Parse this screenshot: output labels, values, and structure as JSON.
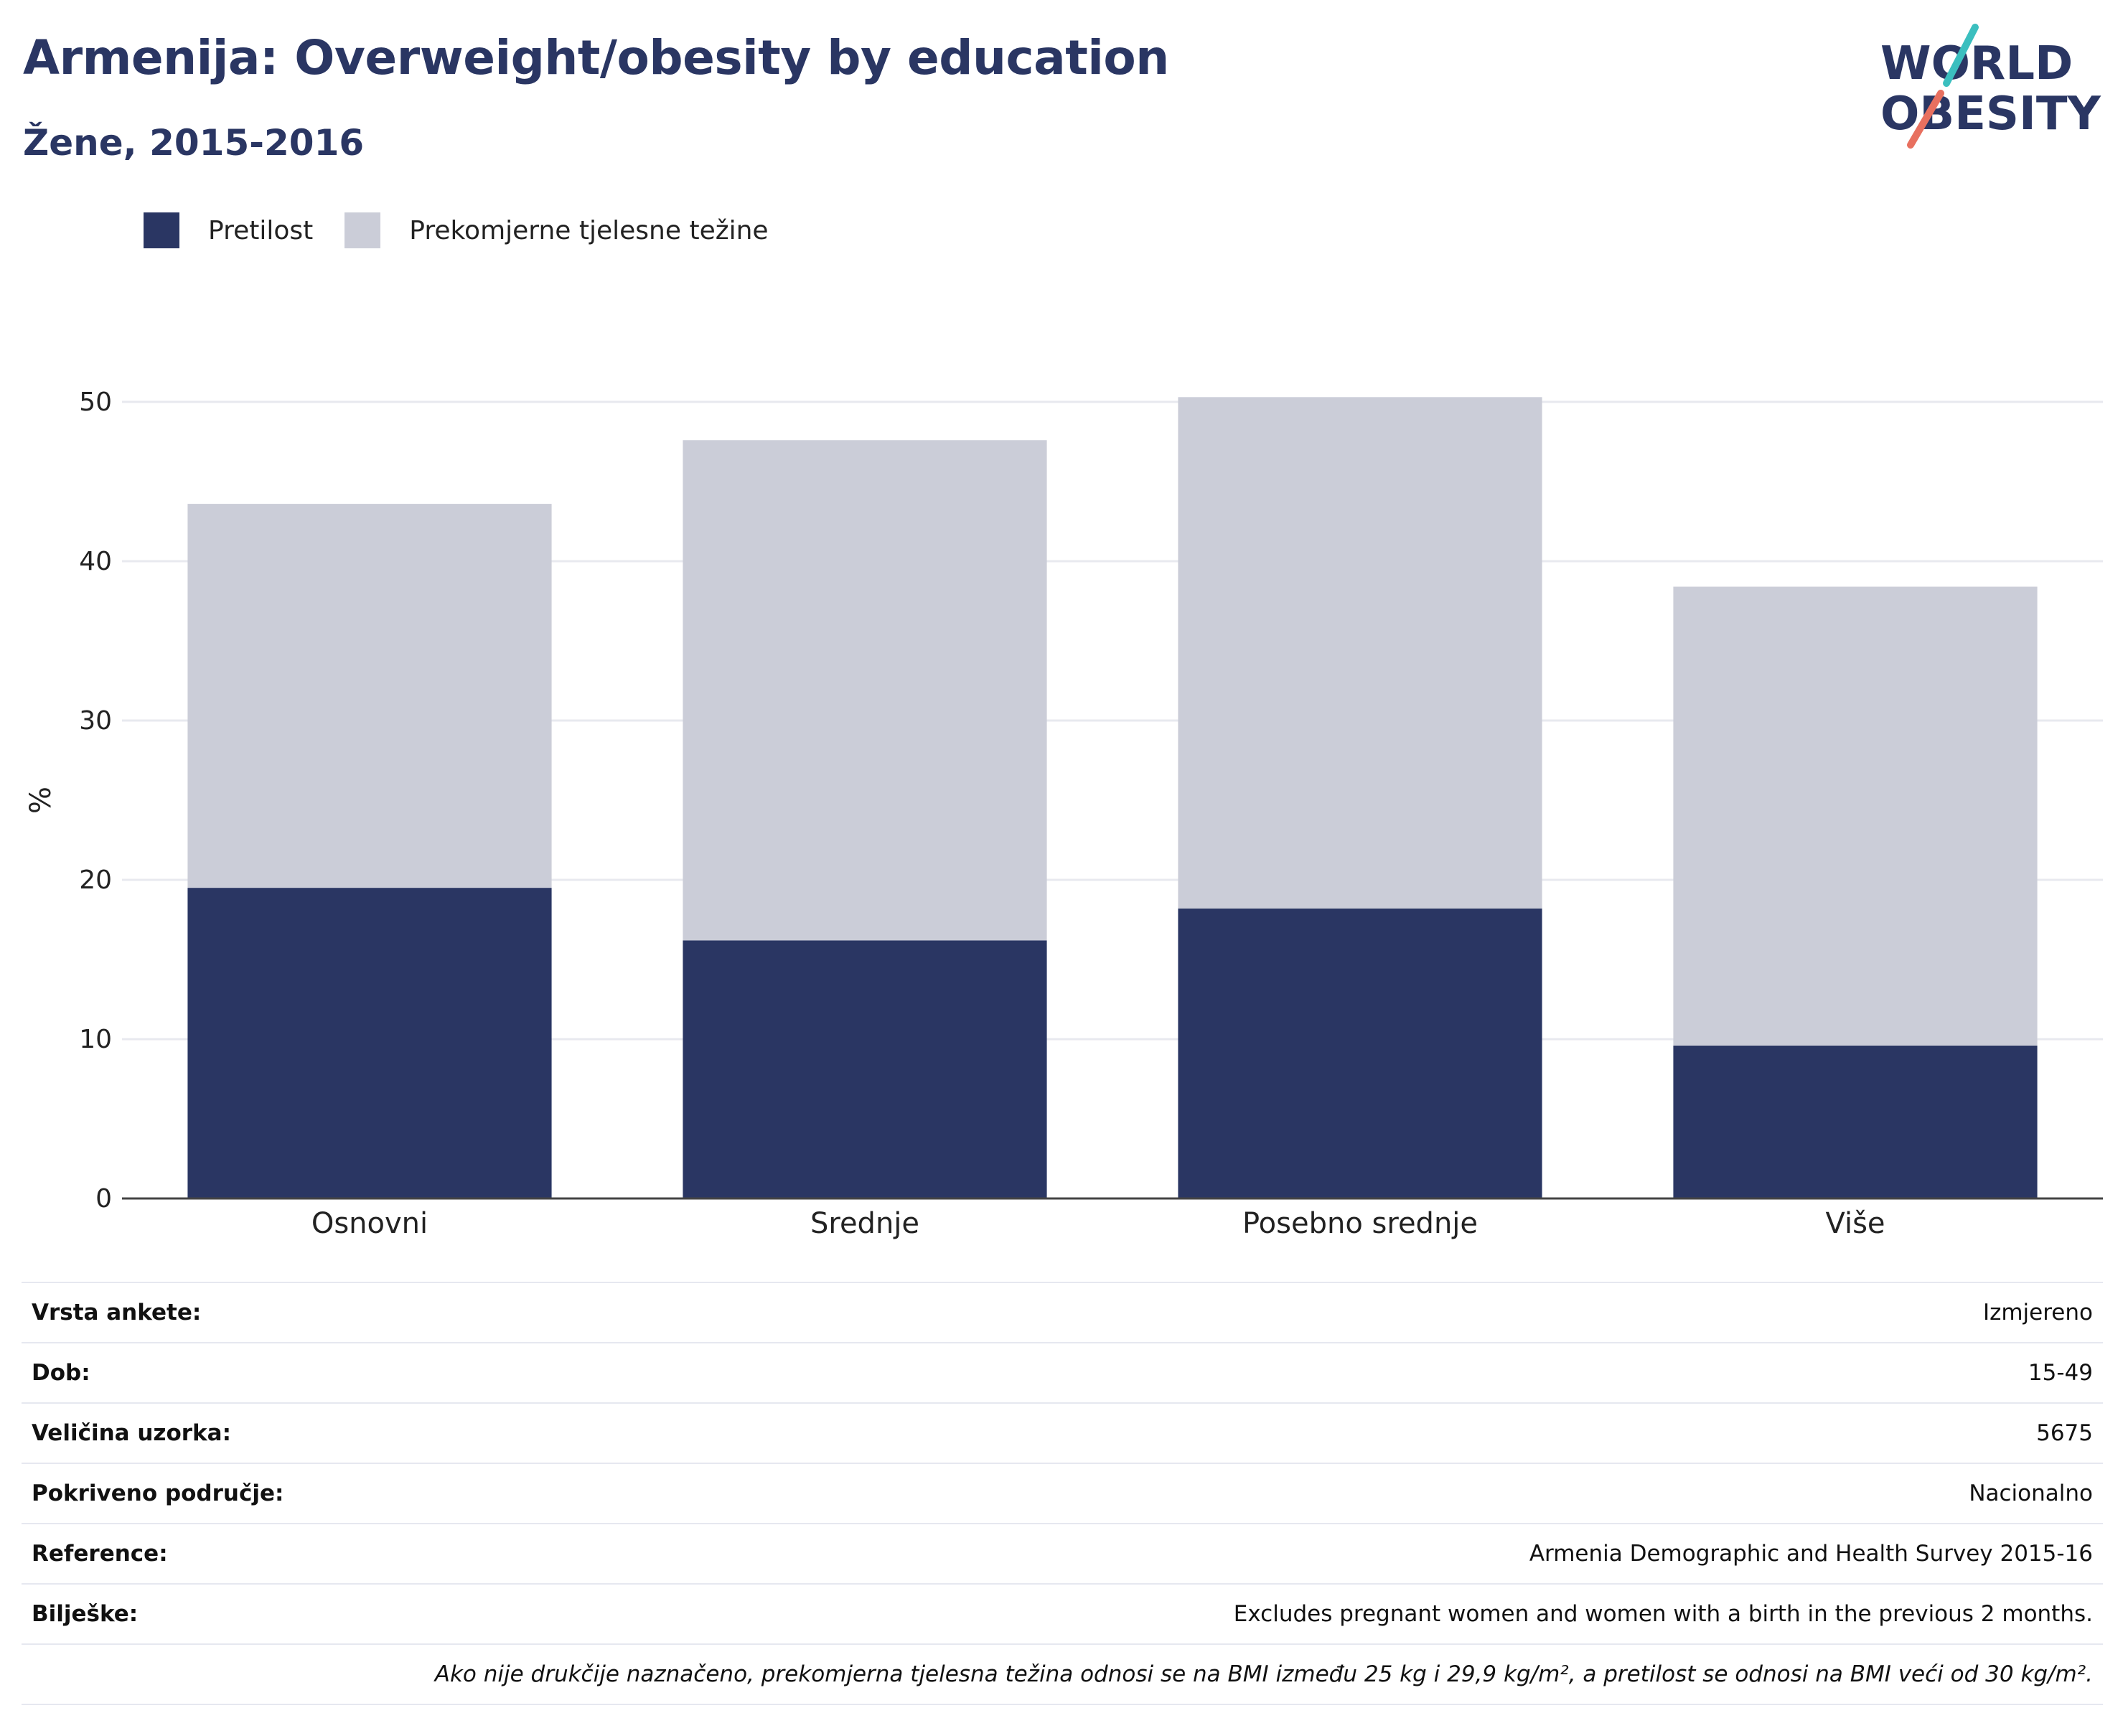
{
  "header": {
    "title": "Armenija: Overweight/obesity by education",
    "subtitle": "Žene, 2015-2016"
  },
  "logo": {
    "line1": "WORLD",
    "line2": "OBESITY"
  },
  "chart_data": {
    "type": "bar",
    "stacked": true,
    "categories": [
      "Osnovni",
      "Srednje",
      "Posebno srednje",
      "Više"
    ],
    "series": [
      {
        "name": "Pretilost",
        "values": [
          19.5,
          16.2,
          18.2,
          9.6
        ],
        "color": "#2a3663"
      },
      {
        "name": "Prekomjerne tjelesne težine",
        "values": [
          24.1,
          31.4,
          32.1,
          28.8
        ],
        "color": "#cbcdd8"
      }
    ],
    "ylabel": "%",
    "xlabel": "",
    "ylim": [
      0,
      50
    ],
    "yticks": [
      0,
      10,
      20,
      30,
      40,
      50
    ],
    "grid": true,
    "legend": "top-left"
  },
  "info": {
    "rows": [
      {
        "label": "Vrsta ankete:",
        "value": "Izmjereno"
      },
      {
        "label": "Dob:",
        "value": "15-49"
      },
      {
        "label": "Veličina uzorka:",
        "value": "5675"
      },
      {
        "label": "Pokriveno područje:",
        "value": "Nacionalno"
      },
      {
        "label": "Reference:",
        "value": "Armenia Demographic and Health Survey 2015-16"
      },
      {
        "label": "Bilješke:",
        "value": "Excludes pregnant women and women with a birth in the previous 2 months."
      }
    ],
    "footnote": "Ako nije drukčije naznačeno, prekomjerna tjelesna težina odnosi se na BMI između 25 kg i 29,9 kg/m², a pretilost se odnosi na BMI veći od 30 kg/m²."
  }
}
